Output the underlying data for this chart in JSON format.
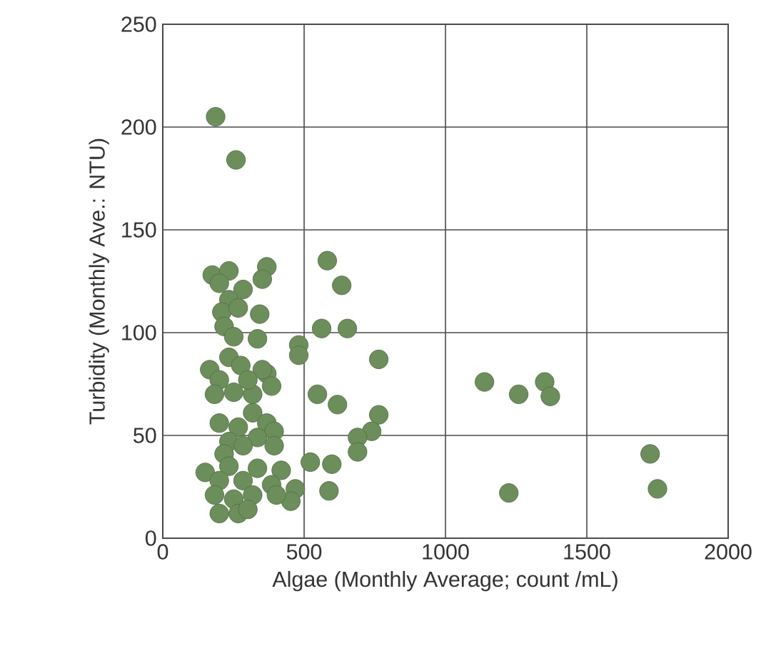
{
  "chart_data": {
    "type": "scatter",
    "xlabel": "Algae (Monthly Average; count /mL)",
    "ylabel": "Turbidity (Monthly Ave.: NTU)",
    "xlim": [
      0,
      2000
    ],
    "ylim": [
      0,
      250
    ],
    "xticks": [
      0,
      500,
      1000,
      1500,
      2000
    ],
    "yticks": [
      0,
      50,
      100,
      150,
      200,
      250
    ],
    "grid": true,
    "marker": "circle",
    "series": [
      {
        "color": "#6b8e5a",
        "x": [
          187,
          259,
          582,
          633,
          562,
          653,
          481,
          481,
          764,
          547,
          618,
          764,
          739,
          689,
          689,
          522,
          598,
          588,
          1138,
          1259,
          1351,
          1371,
          1224,
          1724,
          1750,
          175,
          234,
          368,
          352,
          284,
          234,
          209,
          267,
          343,
          217,
          251,
          335,
          200,
          166,
          234,
          276,
          200,
          368,
          385,
          183,
          251,
          318,
          352,
          301,
          200,
          318,
          267,
          368,
          394,
          335,
          234,
          284,
          394,
          217,
          150,
          234,
          335,
          419,
          200,
          284,
          385,
          469,
          453,
          183,
          251,
          318,
          200,
          267,
          301,
          402
        ],
        "values": [
          205,
          184,
          135,
          123,
          102,
          102,
          94,
          89,
          87,
          70,
          65,
          60,
          52,
          49,
          42,
          37,
          36,
          23,
          76,
          70,
          76,
          69,
          22,
          41,
          24,
          128,
          130,
          132,
          126,
          121,
          116,
          110,
          112,
          109,
          103,
          98,
          97,
          124,
          82,
          88,
          84,
          77,
          80,
          74,
          70,
          71,
          70,
          82,
          77,
          56,
          61,
          54,
          56,
          52,
          49,
          47,
          45,
          45,
          41,
          32,
          35,
          34,
          33,
          28,
          28,
          26,
          24,
          18,
          21,
          19,
          21,
          12,
          12,
          14,
          21
        ]
      }
    ]
  }
}
